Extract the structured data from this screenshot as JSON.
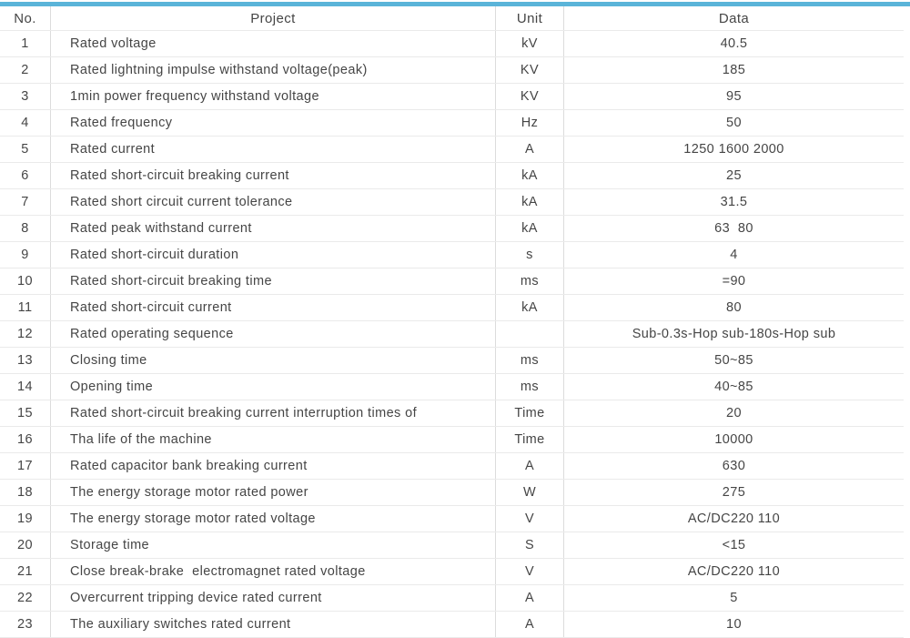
{
  "accent_color": "#5ab4d9",
  "table": {
    "header": {
      "no": "No.",
      "project": "Project",
      "unit": "Unit",
      "data": "Data"
    },
    "rows": [
      {
        "no": "1",
        "project": "Rated voltage",
        "unit": "kV",
        "data": "40.5"
      },
      {
        "no": "2",
        "project": "Rated lightning impulse withstand voltage(peak)",
        "unit": "KV",
        "data": "185"
      },
      {
        "no": "3",
        "project": "1min power frequency withstand voltage",
        "unit": "KV",
        "data": "95"
      },
      {
        "no": "4",
        "project": "Rated frequency",
        "unit": "Hz",
        "data": "50"
      },
      {
        "no": "5",
        "project": "Rated current",
        "unit": "A",
        "data": "1250 1600 2000"
      },
      {
        "no": "6",
        "project": "Rated short-circuit breaking current",
        "unit": "kA",
        "data": "25"
      },
      {
        "no": "7",
        "project": "Rated short circuit current tolerance",
        "unit": "kA",
        "data": "31.5"
      },
      {
        "no": "8",
        "project": "Rated peak withstand current",
        "unit": "kA",
        "data": "63  80"
      },
      {
        "no": "9",
        "project": "Rated short-circuit duration",
        "unit": "s",
        "data": "4"
      },
      {
        "no": "10",
        "project": "Rated short-circuit breaking time",
        "unit": "ms",
        "data": "=90"
      },
      {
        "no": "11",
        "project": "Rated short-circuit current",
        "unit": "kA",
        "data": "80"
      },
      {
        "no": "12",
        "project": "Rated operating sequence",
        "unit": "",
        "data": "Sub-0.3s-Hop sub-180s-Hop sub"
      },
      {
        "no": "13",
        "project": "Closing time",
        "unit": "ms",
        "data": "50~85"
      },
      {
        "no": "14",
        "project": "Opening time",
        "unit": "ms",
        "data": "40~85"
      },
      {
        "no": "15",
        "project": "Rated short-circuit breaking current interruption times of",
        "unit": "Time",
        "data": "20"
      },
      {
        "no": "16",
        "project": "Tha life of the machine",
        "unit": "Time",
        "data": "10000"
      },
      {
        "no": "17",
        "project": "Rated capacitor bank breaking current",
        "unit": "A",
        "data": "630"
      },
      {
        "no": "18",
        "project": "The energy storage motor rated power",
        "unit": "W",
        "data": "275"
      },
      {
        "no": "19",
        "project": "The energy storage motor rated voltage",
        "unit": "V",
        "data": "AC/DC220 110"
      },
      {
        "no": "20",
        "project": "Storage time",
        "unit": "S",
        "data": "<15"
      },
      {
        "no": "21",
        "project": "Close break-brake  electromagnet rated voltage",
        "unit": "V",
        "data": "AC/DC220 110"
      },
      {
        "no": "22",
        "project": "Overcurrent tripping device rated current",
        "unit": "A",
        "data": "5"
      },
      {
        "no": "23",
        "project": "The auxiliary switches rated current",
        "unit": "A",
        "data": "10"
      }
    ]
  }
}
